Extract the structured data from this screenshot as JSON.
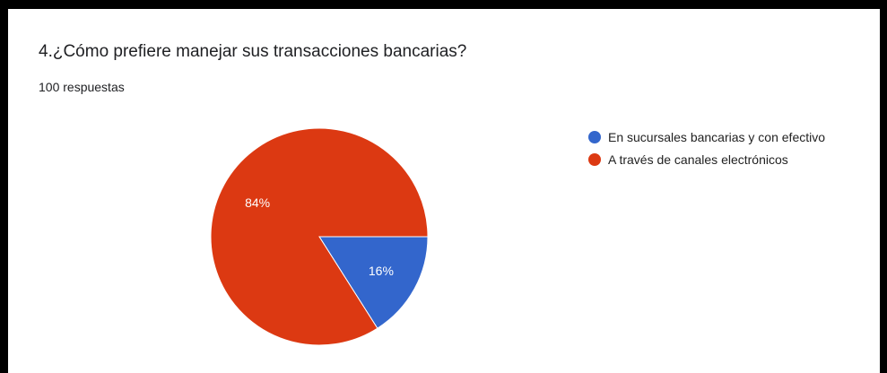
{
  "question": {
    "title": "4.¿Cómo prefiere manejar sus transacciones bancarias?",
    "responses": "100 respuestas"
  },
  "chart_data": {
    "type": "pie",
    "categories": [
      "En sucursales bancarias y con efectivo",
      "A través de canales electrónicos"
    ],
    "values": [
      16,
      84
    ],
    "labels": [
      "16%",
      "84%"
    ],
    "colors": [
      "#3366cc",
      "#dc3912"
    ],
    "legend_position": "right"
  }
}
